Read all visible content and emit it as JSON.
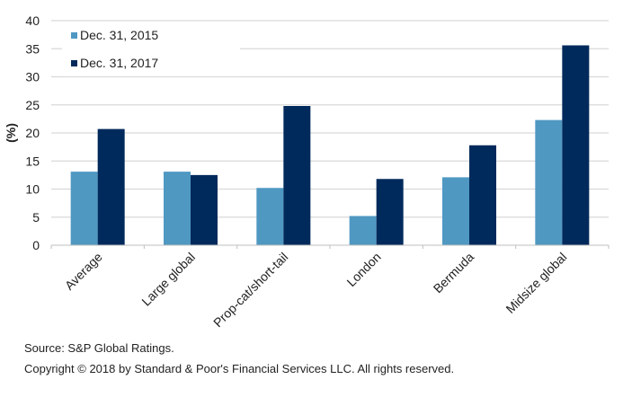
{
  "chart_data": {
    "type": "bar",
    "title": "",
    "xlabel": "",
    "ylabel": "(%)",
    "ylim": [
      0,
      40
    ],
    "yticks": [
      0,
      5,
      10,
      15,
      20,
      25,
      30,
      35,
      40
    ],
    "grid": true,
    "legend_position": "top-left",
    "categories": [
      "Average",
      "Large global",
      "Prop-cat/short-tail",
      "London",
      "Bermuda",
      "Midsize global"
    ],
    "series": [
      {
        "name": "Dec. 31, 2015",
        "color": "#4f98c2",
        "values": [
          13.1,
          13.1,
          10.2,
          5.2,
          12.1,
          22.3
        ]
      },
      {
        "name": "Dec. 31, 2017",
        "color": "#002a5c",
        "values": [
          20.7,
          12.5,
          24.8,
          11.8,
          17.8,
          35.6
        ]
      }
    ]
  },
  "footer": {
    "source": "Source: S&P Global Ratings.",
    "copyright": "Copyright © 2018 by Standard & Poor's Financial Services LLC. All rights reserved."
  }
}
